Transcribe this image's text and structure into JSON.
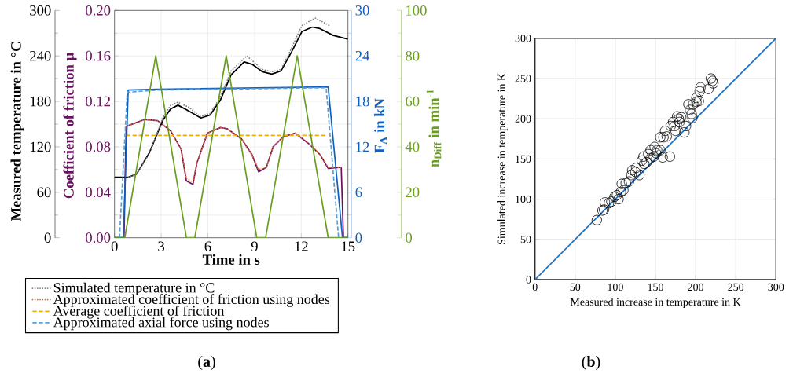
{
  "chart_data": [
    {
      "type": "line",
      "xlabel": "Time in s",
      "ylabel": "Coefficient of friction μ",
      "y2label": "Measured temperature in °C",
      "y3label": "F$_{A}$ in kN",
      "xlim": [
        0,
        15
      ],
      "xticks": [
        0,
        3,
        6,
        9,
        12,
        15
      ],
      "ylim": [
        0,
        0.2
      ],
      "yticks": [
        {
          "value": 0,
          "label": "0.00"
        },
        {
          "value": 0.04,
          "label": "0.04"
        },
        {
          "value": 0.08,
          "label": "0.08"
        },
        {
          "value": 0.12,
          "label": "0.12"
        },
        {
          "value": 0.16,
          "label": "0.16"
        },
        {
          "value": 0.2,
          "label": "0.20"
        }
      ],
      "y2lim": [
        0,
        300
      ],
      "y2ticks": [
        0,
        60,
        120,
        180,
        240,
        300
      ],
      "y3lim": [
        0,
        30
      ],
      "y3ticks": [
        0,
        6,
        12,
        18,
        24,
        30
      ],
      "grid": true,
      "legend": "bottom",
      "annotations": [
        "(**a**)"
      ],
      "series": [
        {
          "axis": "y2",
          "color": "#000000",
          "line_style": "solid",
          "x": [
            0,
            0.9,
            1.42,
            2.26,
            3.1,
            3.6,
            4.08,
            4.79,
            5.55,
            6.14,
            6.81,
            7.49,
            8.33,
            8.84,
            9.51,
            10.1,
            10.69,
            11.37,
            12.04,
            12.71,
            13.2,
            14.06,
            15
          ],
          "values": [
            80,
            80,
            84,
            113,
            155,
            170,
            175,
            167,
            158,
            162,
            182,
            215,
            232,
            229,
            219,
            216,
            220,
            245,
            272,
            278,
            276,
            267,
            262
          ]
        },
        {
          "axis": "y2",
          "name": "Simulated temperature in °C",
          "color": "#808080",
          "line_style": "dotted",
          "x": [
            0.9,
            1.42,
            2.26,
            3.1,
            3.6,
            4.08,
            4.79,
            5.5,
            6.14,
            6.81,
            7.49,
            8.5,
            9.51,
            10.1,
            10.69,
            11.37,
            12.04,
            12.9,
            13.9
          ],
          "values": [
            80,
            84,
            112,
            158,
            175,
            179,
            172,
            160,
            164,
            186,
            220,
            240,
            222,
            219,
            222,
            250,
            280,
            290,
            279
          ]
        },
        {
          "color": "#6a1060",
          "line_style": "solid",
          "x": [
            0,
            0.61,
            0.75,
            1.92,
            2.77,
            3.61,
            4.28,
            4.62,
            5.04,
            5.3,
            5.97,
            6.81,
            7.23,
            8.16,
            8.84,
            9.26,
            9.76,
            10.19,
            10.86,
            11.62,
            12.55,
            13.22,
            13.73,
            14.57,
            14.71,
            15
          ],
          "values": [
            0,
            0,
            0.098,
            0.104,
            0.103,
            0.094,
            0.078,
            0.05,
            0.047,
            0.066,
            0.092,
            0.097,
            0.096,
            0.087,
            0.073,
            0.058,
            0.062,
            0.08,
            0.089,
            0.092,
            0.082,
            0.073,
            0.061,
            0.062,
            0,
            0
          ]
        },
        {
          "name": "Approximated coefficient of friction using nodes",
          "color": "#e07030",
          "line_style": "dotted",
          "x": [
            0.75,
            1.92,
            2.77,
            3.61,
            4.28,
            4.62,
            5.04,
            5.3,
            5.97,
            6.81,
            7.23,
            8.16,
            8.84,
            9.26,
            9.76,
            10.19,
            10.86,
            11.62,
            12.55,
            13.22,
            13.73,
            14.6
          ],
          "values": [
            0.098,
            0.104,
            0.103,
            0.094,
            0.078,
            0.052,
            0.049,
            0.066,
            0.092,
            0.097,
            0.096,
            0.087,
            0.073,
            0.06,
            0.062,
            0.08,
            0.089,
            0.092,
            0.082,
            0.073,
            0.062,
            0.062
          ]
        },
        {
          "name": "Average coefficient of friction",
          "color": "#f0b000",
          "line_style": "dashed",
          "x": [
            0.75,
            13.56
          ],
          "values": [
            0.09,
            0.09
          ]
        },
        {
          "axis": "y3",
          "color": "#1060c0",
          "line_style": "solid",
          "x": [
            0,
            0.57,
            0.88,
            2.77,
            13.73,
            14.65,
            15
          ],
          "values": [
            0,
            0,
            19.5,
            19.6,
            19.9,
            0,
            0
          ]
        },
        {
          "axis": "y3",
          "name": "Approximated axial force using nodes",
          "color": "#5aa0d8",
          "line_style": "dashed",
          "x": [
            0.32,
            0.82,
            2.77,
            13.6,
            14.4
          ],
          "values": [
            0,
            19.2,
            19.5,
            19.8,
            0
          ]
        }
      ]
    },
    {
      "type": "line",
      "ylabel": "n$_{Diff}$ in min$^{-1}$",
      "xlim": [
        0,
        15
      ],
      "ylim": [
        0,
        100
      ],
      "yticks": [
        0,
        20,
        40,
        60,
        80,
        100
      ],
      "tick_labels": "y",
      "series": [
        {
          "color": "#6a9e20",
          "line_style": "solid",
          "x": [
            0,
            0.66,
            2.65,
            4.62,
            5.16,
            7.18,
            9.14,
            9.71,
            11.74,
            13.73,
            15
          ],
          "values": [
            0,
            0,
            80,
            0,
            0,
            80,
            0,
            0,
            80,
            0,
            0
          ]
        }
      ]
    },
    {
      "type": "scatter",
      "xlabel": "Measured increase in temperature in K",
      "ylabel": "Simulated increase in temperature in K",
      "xlim": [
        0,
        300
      ],
      "xticks": [
        0,
        50,
        100,
        150,
        200,
        250,
        300
      ],
      "ylim": [
        0,
        300
      ],
      "yticks": [
        0,
        50,
        100,
        150,
        200,
        250,
        300
      ],
      "grid": true,
      "annotations": [
        "(**b**)"
      ],
      "series": [
        {
          "type": "line",
          "color": "#1f6fc0",
          "line_style": "solid",
          "x": [
            0,
            300
          ],
          "values": [
            0,
            300
          ]
        },
        {
          "marker": "circle",
          "color": "#000000",
          "x": [
            77,
            84,
            86,
            87,
            92,
            95,
            99,
            102,
            104,
            107,
            110,
            108,
            113,
            117,
            120,
            121,
            125,
            130,
            126,
            133,
            135,
            136,
            139,
            141,
            144,
            144,
            148,
            149,
            151,
            152,
            156,
            156,
            159,
            160,
            162,
            164,
            168,
            169,
            172,
            174,
            175,
            177,
            179,
            180,
            182,
            186,
            188,
            191,
            193,
            195,
            196,
            197,
            201,
            205,
            206,
            216,
            219,
            221,
            222,
            201,
            204
          ],
          "values": [
            74,
            86,
            87,
            96,
            95,
            97,
            103,
            105,
            100,
            109,
            111,
            119,
            120,
            122,
            130,
            136,
            134,
            130,
            139,
            148,
            153,
            144,
            146,
            156,
            151,
            161,
            153,
            165,
            157,
            161,
            161,
            177,
            152,
            177,
            185,
            178,
            153,
            191,
            196,
            191,
            185,
            203,
            200,
            196,
            202,
            183,
            191,
            218,
            211,
            206,
            201,
            218,
            226,
            234,
            239,
            237,
            250,
            247,
            244,
            221,
            222
          ]
        }
      ]
    }
  ]
}
